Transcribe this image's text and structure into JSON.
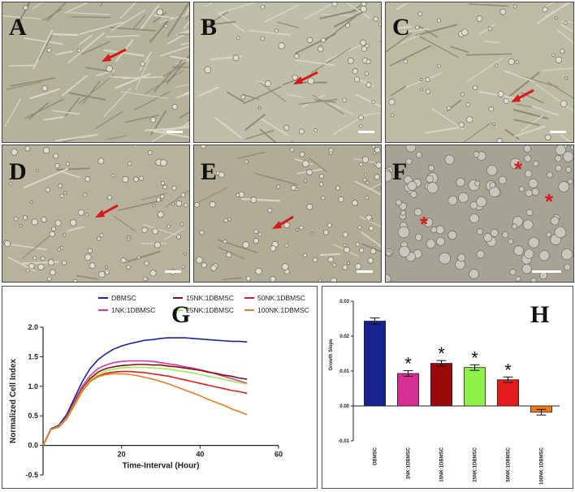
{
  "micrographs": [
    {
      "label": "A",
      "marker": "arrow",
      "bg": "#b5b29c"
    },
    {
      "label": "B",
      "marker": "arrow",
      "bg": "#bfbea8"
    },
    {
      "label": "C",
      "marker": "arrow",
      "bg": "#bdbba3"
    },
    {
      "label": "D",
      "marker": "arrow",
      "bg": "#b7b29c"
    },
    {
      "label": "E",
      "marker": "arrow",
      "bg": "#b0ac96"
    },
    {
      "label": "F",
      "marker": "asterisk",
      "bg": "#a6a394"
    }
  ],
  "colors": {
    "marker": "#d8191c"
  },
  "chart_data": [
    {
      "label": "G",
      "type": "line",
      "xlabel": "Time-Interval (Hour)",
      "ylabel": "Normalized Cell Index",
      "xlim": [
        0,
        60
      ],
      "ylim": [
        -0.5,
        2.0
      ],
      "xticks": [
        "20",
        "40",
        "60"
      ],
      "yticks": [
        "-0.5",
        "0.0",
        "0.5",
        "1.0",
        "1.5",
        "2.0"
      ],
      "x": [
        0,
        2,
        4,
        6,
        8,
        10,
        12,
        14,
        16,
        18,
        20,
        22,
        24,
        26,
        28,
        30,
        32,
        34,
        36,
        38,
        40,
        42,
        44,
        46,
        48,
        50,
        52
      ],
      "series": [
        {
          "name": "DBMSC",
          "color": "#1a22a6",
          "values": [
            0,
            0.28,
            0.34,
            0.52,
            0.8,
            1.08,
            1.3,
            1.45,
            1.55,
            1.63,
            1.68,
            1.72,
            1.75,
            1.78,
            1.79,
            1.81,
            1.82,
            1.82,
            1.82,
            1.81,
            1.8,
            1.79,
            1.78,
            1.77,
            1.76,
            1.76,
            1.75
          ]
        },
        {
          "name": "1NK:1DBMSC",
          "color": "#e0339c",
          "values": [
            0,
            0.27,
            0.32,
            0.48,
            0.75,
            1.0,
            1.18,
            1.3,
            1.36,
            1.4,
            1.42,
            1.43,
            1.43,
            1.43,
            1.42,
            1.4,
            1.38,
            1.36,
            1.33,
            1.31,
            1.28,
            1.25,
            1.21,
            1.17,
            1.13,
            1.09,
            1.05
          ]
        },
        {
          "name": "15NK:1DBMSC",
          "color": "#8b0e0e",
          "values": [
            0,
            0.27,
            0.32,
            0.47,
            0.72,
            0.96,
            1.13,
            1.24,
            1.3,
            1.33,
            1.35,
            1.36,
            1.37,
            1.37,
            1.36,
            1.36,
            1.34,
            1.33,
            1.31,
            1.29,
            1.27,
            1.24,
            1.22,
            1.19,
            1.17,
            1.14,
            1.12
          ]
        },
        {
          "name": "25NK:1DBMSC",
          "color": "#92f24a",
          "values": [
            0,
            0.27,
            0.32,
            0.46,
            0.7,
            0.94,
            1.1,
            1.2,
            1.26,
            1.29,
            1.31,
            1.32,
            1.32,
            1.32,
            1.31,
            1.3,
            1.29,
            1.27,
            1.25,
            1.23,
            1.2,
            1.17,
            1.15,
            1.12,
            1.09,
            1.06,
            1.04
          ]
        },
        {
          "name": "50NK:1DBMSC",
          "color": "#e51a1a",
          "values": [
            0,
            0.27,
            0.31,
            0.45,
            0.68,
            0.92,
            1.08,
            1.17,
            1.22,
            1.24,
            1.25,
            1.25,
            1.24,
            1.23,
            1.21,
            1.19,
            1.17,
            1.14,
            1.11,
            1.08,
            1.05,
            1.02,
            0.99,
            0.96,
            0.93,
            0.91,
            0.88
          ]
        },
        {
          "name": "100NK:1DBMSC",
          "color": "#f07a1a",
          "values": [
            0,
            0.27,
            0.31,
            0.45,
            0.68,
            0.92,
            1.08,
            1.16,
            1.2,
            1.21,
            1.21,
            1.2,
            1.18,
            1.15,
            1.12,
            1.08,
            1.04,
            0.99,
            0.94,
            0.89,
            0.84,
            0.78,
            0.73,
            0.68,
            0.62,
            0.57,
            0.52
          ]
        }
      ]
    },
    {
      "label": "H",
      "type": "bar",
      "ylabel": "Growth Slope",
      "ylim": [
        -0.01,
        0.03
      ],
      "yticks": [
        "-0.01",
        "0.00",
        "0.01",
        "0.02",
        "0.03"
      ],
      "categories": [
        "DBMSC",
        "1NK:1DBMSC",
        "15NK:1DBMSC",
        "25NK:1DBMSC",
        "50NK:1DBMSC",
        "100NK:1DBMSC"
      ],
      "values": [
        0.0243,
        0.0093,
        0.0122,
        0.011,
        0.0075,
        -0.0018
      ],
      "errors": [
        0.0009,
        0.0008,
        0.0008,
        0.0008,
        0.0008,
        0.0008
      ],
      "significance": [
        "",
        "*",
        "*",
        "*",
        "*",
        ""
      ],
      "colors": [
        "#1a2290",
        "#d62f93",
        "#9b0a0a",
        "#8ff24a",
        "#e31b1b",
        "#f07a1a"
      ]
    }
  ]
}
